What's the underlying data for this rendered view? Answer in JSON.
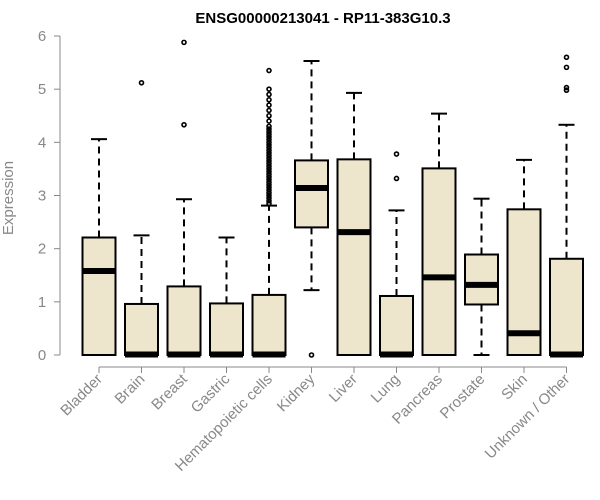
{
  "chart_data": {
    "type": "boxplot",
    "title": "ENSG00000213041 - RP11-383G10.3",
    "ylabel": "Expression",
    "xlabel": "",
    "ylim": [
      0,
      6
    ],
    "yticks": [
      0,
      1,
      2,
      3,
      4,
      5,
      6
    ],
    "grid": false,
    "box_fill": "#EDE6CC",
    "categories": [
      "Bladder",
      "Brain",
      "Breast",
      "Gastric",
      "Hematopoietic cells",
      "Kidney",
      "Liver",
      "Lung",
      "Pancreas",
      "Prostate",
      "Skin",
      "Unknown / Other"
    ],
    "boxes": [
      {
        "min": 0,
        "q1": 0,
        "median": 1.58,
        "q3": 2.21,
        "max": 4.06,
        "outliers": []
      },
      {
        "min": 0,
        "q1": 0,
        "median": 0.01,
        "q3": 0.96,
        "max": 2.25,
        "outliers": [
          5.12
        ]
      },
      {
        "min": 0,
        "q1": 0,
        "median": 0.01,
        "q3": 1.29,
        "max": 2.93,
        "outliers": [
          4.33,
          5.88
        ]
      },
      {
        "min": 0,
        "q1": 0,
        "median": 0.01,
        "q3": 0.97,
        "max": 2.21,
        "outliers": []
      },
      {
        "min": 0,
        "q1": 0,
        "median": 0.01,
        "q3": 1.13,
        "max": 2.81,
        "outliers": [
          2.85,
          2.9,
          2.95,
          3.0,
          3.05,
          3.1,
          3.15,
          3.2,
          3.25,
          3.3,
          3.35,
          3.4,
          3.45,
          3.5,
          3.55,
          3.6,
          3.65,
          3.7,
          3.75,
          3.8,
          3.85,
          3.9,
          3.95,
          4.0,
          4.05,
          4.1,
          4.15,
          4.2,
          4.25,
          4.3,
          4.4,
          4.5,
          4.6,
          4.7,
          4.8,
          4.9,
          5.0,
          5.35
        ]
      },
      {
        "min": 1.22,
        "q1": 2.4,
        "median": 3.14,
        "q3": 3.66,
        "max": 5.53,
        "outliers": [
          0.0
        ]
      },
      {
        "min": 0,
        "q1": 0,
        "median": 2.31,
        "q3": 3.68,
        "max": 4.93,
        "outliers": []
      },
      {
        "min": 0,
        "q1": 0,
        "median": 0.01,
        "q3": 1.11,
        "max": 2.72,
        "outliers": [
          3.32,
          3.78
        ]
      },
      {
        "min": 0,
        "q1": 0,
        "median": 1.46,
        "q3": 3.51,
        "max": 4.54,
        "outliers": []
      },
      {
        "min": 0,
        "q1": 0.95,
        "median": 1.32,
        "q3": 1.89,
        "max": 2.94,
        "outliers": []
      },
      {
        "min": 0,
        "q1": 0,
        "median": 0.41,
        "q3": 2.74,
        "max": 3.67,
        "outliers": []
      },
      {
        "min": 0,
        "q1": 0,
        "median": 0.01,
        "q3": 1.81,
        "max": 4.33,
        "outliers": [
          4.98,
          5.03,
          5.41,
          5.6
        ]
      }
    ]
  }
}
